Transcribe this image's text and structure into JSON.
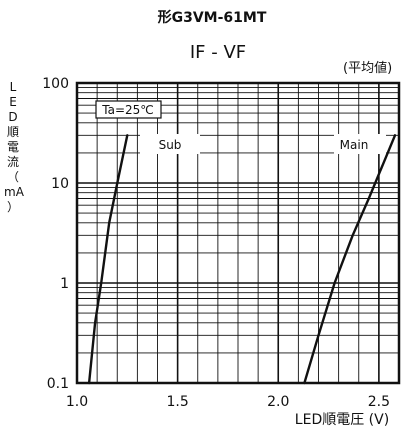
{
  "chart_data": {
    "type": "line",
    "header": "形G3VM-61MT",
    "title": "IF - VF",
    "subtitle": "(平均値)",
    "xlabel": "LED順電圧 (V)",
    "ylabel_chars": [
      "L",
      "E",
      "D",
      "順",
      "電",
      "流",
      "（",
      "mA",
      "）"
    ],
    "xlim": [
      1.0,
      2.6
    ],
    "ylim": [
      0.1,
      100
    ],
    "yscale": "log",
    "x_ticks": [
      1.0,
      1.5,
      2.0,
      2.5
    ],
    "x_tick_labels": [
      "1.0",
      "1.5",
      "2.0",
      "2.5"
    ],
    "y_ticks": [
      0.1,
      1,
      10,
      100
    ],
    "y_tick_labels": [
      "0.1",
      "1",
      "10",
      "100"
    ],
    "grid": true,
    "annotation": "Ta=25℃",
    "series": [
      {
        "name": "Sub",
        "x": [
          1.06,
          1.09,
          1.12,
          1.16,
          1.2,
          1.25
        ],
        "y": [
          0.1,
          0.4,
          1.0,
          4.0,
          10.0,
          30.0
        ]
      },
      {
        "name": "Main",
        "x": [
          2.13,
          2.2,
          2.28,
          2.37,
          2.45,
          2.58
        ],
        "y": [
          0.1,
          0.3,
          1.0,
          3.0,
          7.0,
          30.0
        ]
      }
    ]
  }
}
